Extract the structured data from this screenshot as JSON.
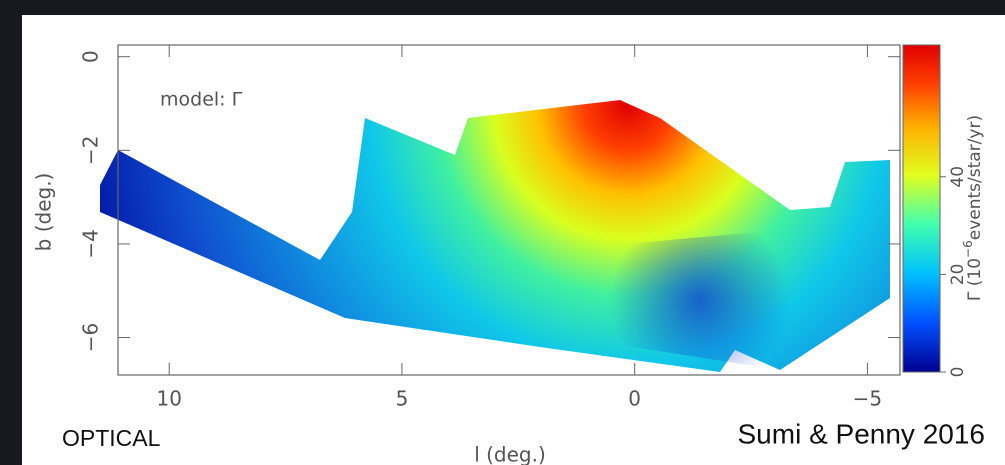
{
  "chart_data": {
    "type": "map",
    "annotation": "model: Γ",
    "xlabel": "l (deg.)",
    "ylabel": "b (deg.)",
    "xlim": [
      11.1,
      -5.7
    ],
    "xticks": [
      10,
      5,
      0,
      {
        "value": -5,
        "label": "−5"
      }
    ],
    "ylim": [
      -6.8,
      0.25
    ],
    "yticks": [
      0,
      {
        "value": -2,
        "label": "−2"
      },
      {
        "value": -4,
        "label": "−4"
      },
      {
        "value": -6,
        "label": "−6"
      }
    ],
    "colorbar": {
      "lim": [
        0,
        67
      ],
      "ticks": [
        0,
        20,
        40
      ],
      "label": {
        "base": "Γ (10",
        "sup": "−6",
        "rest": "events/star/yr)"
      }
    },
    "caption": "OPTICAL",
    "credit": "Sumi & Penny 2016"
  }
}
